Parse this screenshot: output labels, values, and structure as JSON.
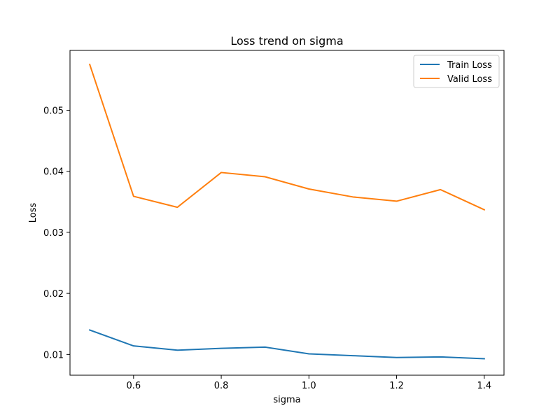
{
  "chart_data": {
    "type": "line",
    "title": "Loss trend on sigma",
    "xlabel": "sigma",
    "ylabel": "Loss",
    "x": [
      0.5,
      0.6,
      0.7,
      0.8,
      0.9,
      1.0,
      1.1,
      1.2,
      1.3,
      1.4
    ],
    "xlim": [
      0.455,
      1.445
    ],
    "ylim": [
      0.0066,
      0.0598
    ],
    "xticks": [
      0.6,
      0.8,
      1.0,
      1.2,
      1.4
    ],
    "xtick_labels": [
      "0.6",
      "0.8",
      "1.0",
      "1.2",
      "1.4"
    ],
    "yticks": [
      0.01,
      0.02,
      0.03,
      0.04,
      0.05
    ],
    "ytick_labels": [
      "0.01",
      "0.02",
      "0.03",
      "0.04",
      "0.05"
    ],
    "grid": false,
    "legend_position": "top-right",
    "series": [
      {
        "name": "Train Loss",
        "color": "#1f77b4",
        "values": [
          0.014,
          0.0114,
          0.0107,
          0.011,
          0.0112,
          0.0101,
          0.0098,
          0.0095,
          0.0096,
          0.0093
        ]
      },
      {
        "name": "Valid Loss",
        "color": "#ff7f0e",
        "values": [
          0.0575,
          0.0359,
          0.0341,
          0.0398,
          0.0391,
          0.0371,
          0.0358,
          0.0351,
          0.037,
          0.0337
        ]
      }
    ]
  }
}
